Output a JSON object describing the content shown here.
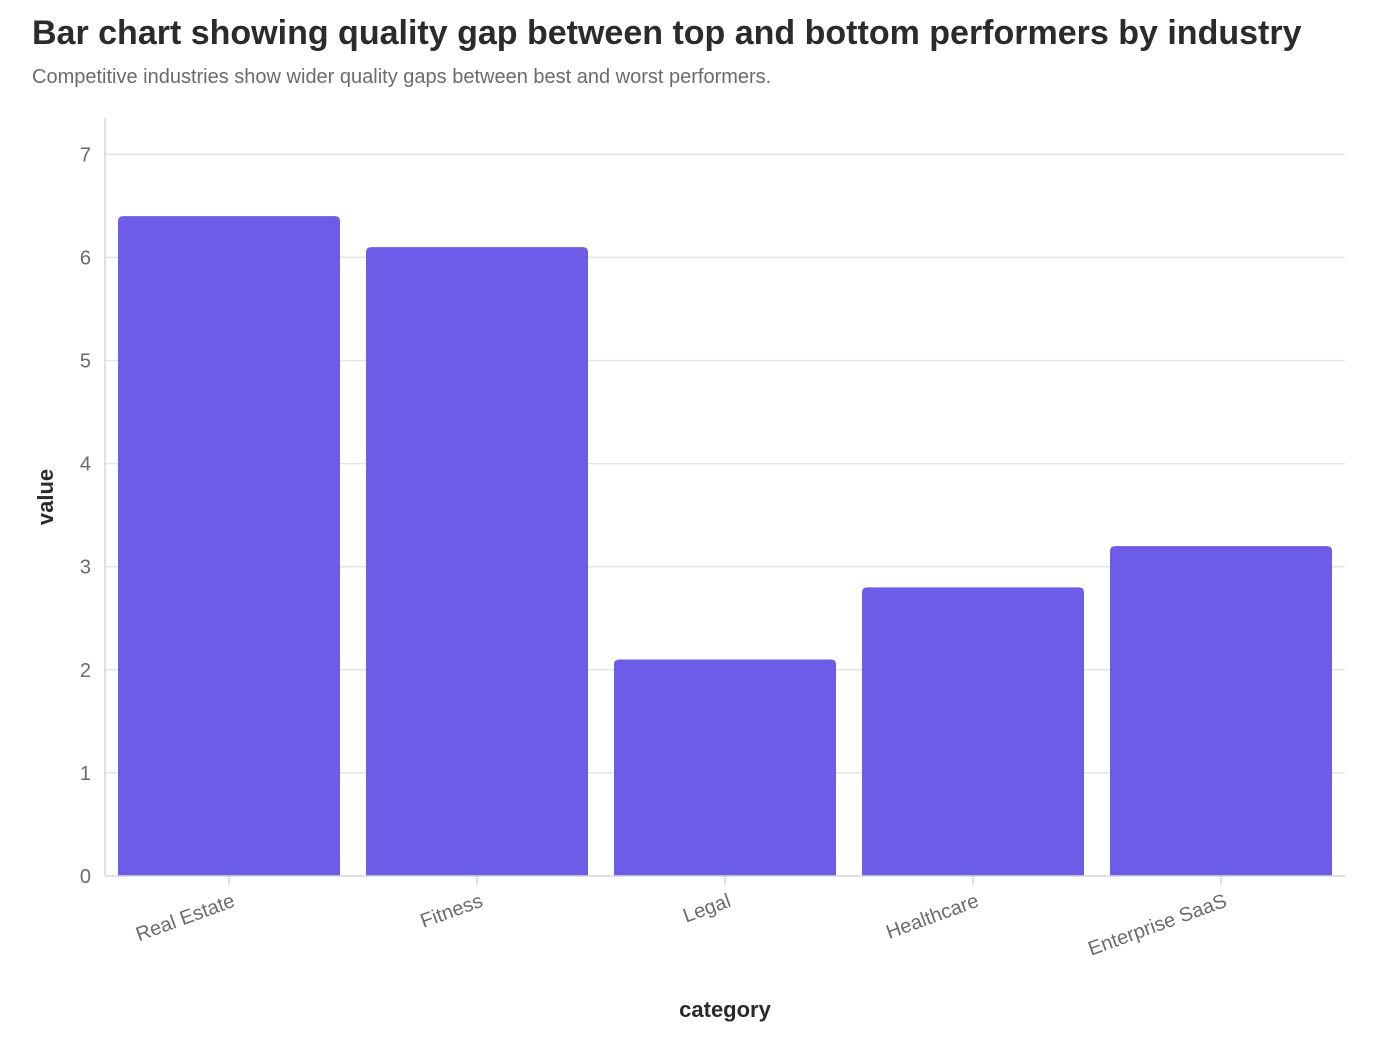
{
  "chart_data": {
    "type": "bar",
    "title": "Bar chart showing quality gap between top and bottom performers by industry",
    "subtitle": "Competitive industries show wider quality gaps between best and worst performers.",
    "xlabel": "category",
    "ylabel": "value",
    "categories": [
      "Real Estate",
      "Fitness",
      "Legal",
      "Healthcare",
      "Enterprise SaaS"
    ],
    "values": [
      6.4,
      6.1,
      2.1,
      2.8,
      3.2
    ],
    "ylim": [
      0,
      7
    ],
    "yticks": [
      0,
      1,
      2,
      3,
      4,
      5,
      6,
      7
    ],
    "grid": true,
    "legend": "none",
    "bar_color": "#6c5ce7",
    "grid_color": "#e3e5e8",
    "axis_color": "#d4d6da"
  }
}
